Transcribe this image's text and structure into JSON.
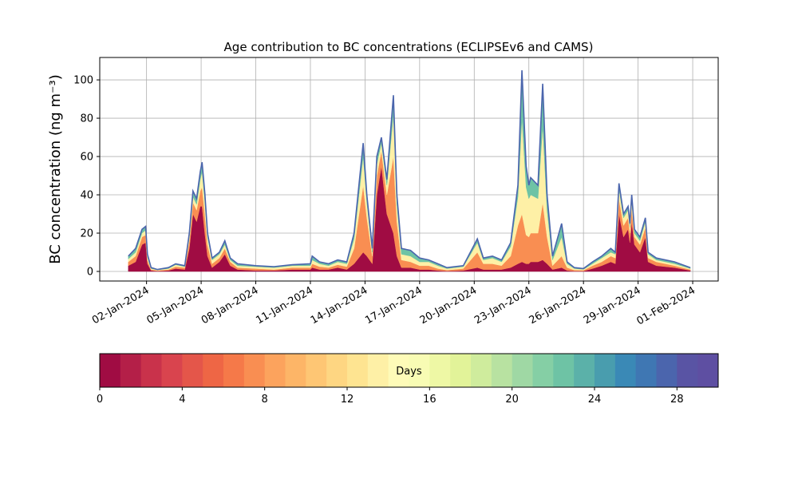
{
  "chart_data": {
    "type": "stacked_area",
    "title": "Age contribution to BC concentrations (ECLIPSEv6 and CAMS)",
    "y_label": "BC concentration (ng m⁻³)",
    "x": [
      1.0,
      1.4,
      1.75,
      1.95,
      2.05,
      2.25,
      2.6,
      3.2,
      3.6,
      4.1,
      4.35,
      4.55,
      4.75,
      4.95,
      5.05,
      5.2,
      5.35,
      5.6,
      6.0,
      6.3,
      6.6,
      7.0,
      8.0,
      9.0,
      10.0,
      11.0,
      11.1,
      11.5,
      12.0,
      12.5,
      13.0,
      13.4,
      13.9,
      14.1,
      14.4,
      14.65,
      14.9,
      15.2,
      15.56,
      15.75,
      16.0,
      16.5,
      17.0,
      17.5,
      18.0,
      18.5,
      19.4,
      20.17,
      20.5,
      21.0,
      21.5,
      22.0,
      22.4,
      22.62,
      22.85,
      23.0,
      23.1,
      23.5,
      23.76,
      24.0,
      24.3,
      24.8,
      25.1,
      25.5,
      26.0,
      26.5,
      27.0,
      27.5,
      27.75,
      27.95,
      28.2,
      28.45,
      28.55,
      28.65,
      28.8,
      29.1,
      29.4,
      29.55,
      30.0,
      31.0,
      31.87
    ],
    "series": [
      {
        "color": "#a00c43",
        "values": [
          3,
          5,
          14,
          15,
          4,
          0.5,
          0.2,
          0.5,
          1.5,
          1,
          12,
          30,
          26,
          34,
          34,
          20,
          8,
          2,
          5,
          9,
          3,
          1,
          0.5,
          0.5,
          1,
          1,
          2,
          1,
          1,
          2,
          1,
          4,
          10,
          8,
          4,
          40,
          55,
          30,
          20,
          8,
          2,
          2,
          1,
          1,
          0.5,
          0.2,
          0.5,
          2,
          1,
          1,
          1,
          2,
          4,
          5,
          4,
          4,
          5,
          5,
          6,
          4,
          1,
          2,
          0.5,
          0.2,
          0.2,
          1.5,
          3,
          5,
          4,
          30,
          18,
          22,
          15,
          26,
          14,
          10,
          18,
          5,
          3,
          2,
          0.5
        ]
      },
      {
        "color": "#f98e52",
        "values": [
          2,
          3,
          4,
          4,
          2,
          0.5,
          0.3,
          0.5,
          1,
          1,
          4,
          6,
          6,
          8,
          10,
          10,
          6,
          2,
          2,
          3,
          2,
          1,
          1,
          0.5,
          1,
          1,
          2,
          1.5,
          1,
          1.5,
          1.5,
          8,
          35,
          20,
          4,
          10,
          8,
          10,
          40,
          18,
          4,
          3,
          2,
          2,
          1,
          0.5,
          1,
          8,
          3,
          3,
          2,
          6,
          20,
          25,
          15,
          14,
          15,
          15,
          30,
          14,
          2,
          6,
          1.5,
          0.5,
          0.4,
          1.5,
          2,
          3,
          3,
          8,
          6,
          6,
          5,
          7,
          4,
          4,
          5,
          2,
          2,
          1,
          0.5
        ]
      },
      {
        "color": "#fef0a6",
        "values": [
          1.5,
          2,
          2,
          2.5,
          1.5,
          0.5,
          0.3,
          0.5,
          1,
          0.5,
          2,
          3,
          3,
          6,
          8,
          7,
          4,
          2,
          2,
          2,
          1,
          1,
          1,
          1,
          1,
          1,
          2,
          1.5,
          1,
          1.5,
          1.5,
          5,
          15,
          8,
          2,
          6,
          4,
          5,
          22,
          9,
          3,
          3,
          2,
          2,
          1.5,
          0.8,
          1,
          5,
          2,
          3,
          2,
          5,
          15,
          50,
          25,
          20,
          20,
          18,
          40,
          14,
          3,
          10,
          2,
          0.8,
          0.5,
          1,
          2,
          2,
          2,
          5,
          4,
          4,
          3,
          4,
          2,
          2,
          3,
          2,
          1,
          1,
          0.5
        ]
      },
      {
        "color": "#6ec3a5",
        "values": [
          1.5,
          2,
          2,
          2,
          1.5,
          0.5,
          0.2,
          0.5,
          0.5,
          0.5,
          2,
          3,
          3,
          4,
          5,
          4,
          2,
          1,
          1,
          2,
          1,
          1,
          0.5,
          0.5,
          0.5,
          1,
          2,
          1,
          1,
          1,
          1,
          3,
          7,
          4,
          2,
          4,
          3,
          3,
          10,
          5,
          3,
          3,
          2,
          1,
          1,
          0.5,
          0.5,
          2,
          1,
          1,
          1,
          2,
          6,
          25,
          11,
          7,
          9,
          7,
          22,
          8,
          2,
          7,
          1,
          0.5,
          0.4,
          1,
          1,
          2,
          1,
          3,
          2,
          2,
          2,
          3,
          2,
          2,
          2,
          1,
          1,
          1,
          0.5
        ]
      }
    ],
    "outline_color": "#4b65ad",
    "xlim": [
      -0.57,
      33.4
    ],
    "xticks": [
      {
        "value": 2,
        "label": "02-Jan-2024"
      },
      {
        "value": 5,
        "label": "05-Jan-2024"
      },
      {
        "value": 8,
        "label": "08-Jan-2024"
      },
      {
        "value": 11,
        "label": "11-Jan-2024"
      },
      {
        "value": 14,
        "label": "14-Jan-2024"
      },
      {
        "value": 17,
        "label": "17-Jan-2024"
      },
      {
        "value": 20,
        "label": "20-Jan-2024"
      },
      {
        "value": 23,
        "label": "23-Jan-2024"
      },
      {
        "value": 26,
        "label": "26-Jan-2024"
      },
      {
        "value": 29,
        "label": "29-Jan-2024"
      },
      {
        "value": 32,
        "label": "01-Feb-2024"
      }
    ],
    "ylim": [
      -5,
      111.7
    ],
    "yticks": [
      0,
      20,
      40,
      60,
      80,
      100
    ],
    "grid": true,
    "colorbar": {
      "label": "Days",
      "lim": [
        0,
        30
      ],
      "ticks": [
        0,
        4,
        8,
        12,
        16,
        20,
        24,
        28
      ],
      "colors": [
        "#a00c43",
        "#b41f48",
        "#c9324b",
        "#d9444e",
        "#e4564a",
        "#ee6645",
        "#f57949",
        "#f98e52",
        "#fca35d",
        "#fdb567",
        "#fec674",
        "#fed682",
        "#fee491",
        "#fef0a6",
        "#fefbb8",
        "#f8fcb4",
        "#eef8a5",
        "#e2f399",
        "#cfec9d",
        "#b8e2a1",
        "#9fd8a4",
        "#85cfa5",
        "#6ec3a5",
        "#5bb1a9",
        "#499dae",
        "#3a89b6",
        "#3f77b3",
        "#4b65ad",
        "#5954a4",
        "#5e4fa2"
      ]
    }
  }
}
